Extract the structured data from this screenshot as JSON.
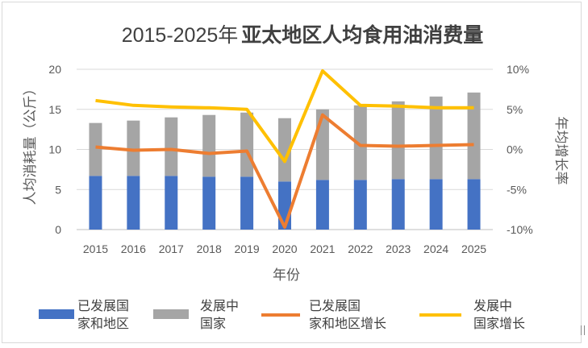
{
  "chart_data": {
    "type": "bar",
    "title_part1": "2015-2025年",
    "title_part2": "亚太地区人均食用油消费量",
    "xlabel": "年份",
    "ylabel": "人均消耗量（公斤）",
    "y2label": "年均增长率",
    "ylim": [
      0,
      20
    ],
    "y2lim": [
      -10,
      10
    ],
    "yticks": [
      "0",
      "5",
      "10",
      "15",
      "20"
    ],
    "y2ticks": [
      "-10%",
      "-5%",
      "0%",
      "5%",
      "10%"
    ],
    "categories": [
      "2015",
      "2016",
      "2017",
      "2018",
      "2019",
      "2020",
      "2021",
      "2022",
      "2023",
      "2024",
      "2025"
    ],
    "stacked": true,
    "legend_position": "bottom",
    "series": [
      {
        "name_line1": "已发展国",
        "name_line2": "家和地区",
        "kind": "bar",
        "axis": "left",
        "color": "#4472c4",
        "values": [
          6.7,
          6.7,
          6.7,
          6.6,
          6.6,
          6.0,
          6.2,
          6.2,
          6.3,
          6.3,
          6.3
        ]
      },
      {
        "name_line1": "发展中",
        "name_line2": "国家",
        "kind": "bar",
        "axis": "left",
        "color": "#a5a5a5",
        "values": [
          6.6,
          6.9,
          7.3,
          7.7,
          8.0,
          7.9,
          8.8,
          9.3,
          9.7,
          10.3,
          10.8
        ]
      },
      {
        "name_line1": "已发展国",
        "name_line2": "家和地区增长",
        "kind": "line",
        "axis": "right",
        "color": "#ed7d31",
        "values": [
          0.3,
          -0.1,
          0.0,
          -0.5,
          -0.2,
          -9.7,
          4.3,
          0.5,
          0.4,
          0.5,
          0.6
        ]
      },
      {
        "name_line1": "发展中",
        "name_line2": "国家增长",
        "kind": "line",
        "axis": "right",
        "color": "#ffc000",
        "values": [
          6.1,
          5.5,
          5.3,
          5.2,
          5.0,
          -1.5,
          9.8,
          5.5,
          5.4,
          5.2,
          5.2
        ]
      }
    ]
  }
}
